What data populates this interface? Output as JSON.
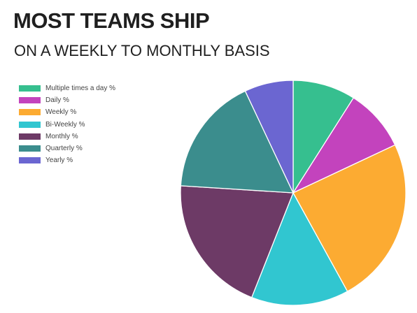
{
  "header": {
    "title": "MOST TEAMS SHIP",
    "subtitle": "ON A WEEKLY TO MONTHLY BASIS"
  },
  "chart_data": {
    "type": "pie",
    "title": "MOST TEAMS SHIP",
    "subtitle": "ON A WEEKLY TO MONTHLY BASIS",
    "legend_position": "top-left",
    "start_angle_deg": 0,
    "direction": "clockwise",
    "categories": [
      "Multiple times a day %",
      "Daily %",
      "Weekly %",
      "Bi-Weekly %",
      "Monthly %",
      "Quarterly %",
      "Yearly %"
    ],
    "values": [
      9,
      9,
      24,
      14,
      20,
      17,
      7
    ],
    "colors": [
      "#36bf8f",
      "#c343bd",
      "#fcab32",
      "#31c6d0",
      "#6d3a66",
      "#3b8d8d",
      "#6b66d1"
    ]
  }
}
